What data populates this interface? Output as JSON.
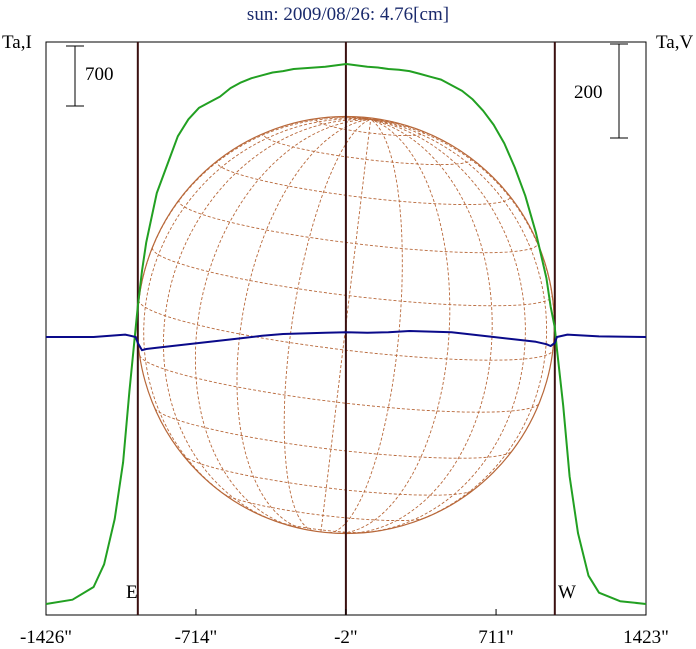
{
  "chart_data": {
    "type": "line",
    "title": "sun: 2009/08/26: 4.76[cm]",
    "left_axis_label": "Ta,I",
    "right_axis_label": "Ta,V",
    "left_scale_bar": "700",
    "right_scale_bar": "200",
    "east_label": "E",
    "west_label": "W",
    "x_ticks": [
      "-1426\"",
      "-714\"",
      "-2\"",
      "711\"",
      "1423\""
    ],
    "x_tick_values": [
      -1426,
      -714,
      -2,
      711,
      1423
    ],
    "xlim": [
      -1426,
      1423
    ],
    "limb_positions": [
      -990,
      990
    ],
    "grid": false,
    "colors": {
      "intensity": "#22a022",
      "polarization": "#0a0a8a",
      "sun_disk": "#b8683a",
      "limb_lines": "#3a1010"
    },
    "series": [
      {
        "key": "intensity",
        "x": [
          -1426,
          -1300,
          -1200,
          -1150,
          -1100,
          -1060,
          -1030,
          -1000,
          -990,
          -970,
          -950,
          -900,
          -850,
          -800,
          -750,
          -700,
          -650,
          -600,
          -550,
          -500,
          -450,
          -400,
          -350,
          -300,
          -250,
          -200,
          -150,
          -100,
          -50,
          0,
          50,
          100,
          150,
          200,
          250,
          300,
          350,
          400,
          450,
          500,
          550,
          600,
          650,
          700,
          750,
          800,
          850,
          900,
          950,
          970,
          990,
          1000,
          1030,
          1060,
          1100,
          1150,
          1200,
          1300,
          1423
        ],
        "y": [
          0,
          30,
          120,
          280,
          600,
          1000,
          1500,
          1950,
          2100,
          2350,
          2550,
          2900,
          3100,
          3300,
          3420,
          3500,
          3540,
          3580,
          3640,
          3680,
          3710,
          3730,
          3750,
          3760,
          3775,
          3780,
          3785,
          3790,
          3800,
          3810,
          3800,
          3790,
          3785,
          3775,
          3770,
          3760,
          3740,
          3720,
          3700,
          3660,
          3620,
          3560,
          3480,
          3380,
          3250,
          3080,
          2880,
          2620,
          2300,
          2100,
          1950,
          1800,
          1400,
          900,
          500,
          200,
          80,
          20,
          0
        ]
      },
      {
        "key": "polarization",
        "x": [
          -1426,
          -1200,
          -1050,
          -1000,
          -990,
          -970,
          -950,
          -900,
          -800,
          -700,
          -600,
          -500,
          -400,
          -300,
          -200,
          -100,
          0,
          100,
          200,
          300,
          400,
          500,
          600,
          700,
          800,
          900,
          950,
          970,
          990,
          1000,
          1050,
          1200,
          1423
        ],
        "y": [
          0,
          0,
          4,
          0,
          -10,
          -22,
          -20,
          -18,
          -14,
          -10,
          -6,
          -2,
          2,
          5,
          6,
          7,
          8,
          7,
          8,
          10,
          9,
          8,
          4,
          0,
          -4,
          -8,
          -12,
          -15,
          -10,
          0,
          4,
          1,
          0
        ]
      }
    ]
  }
}
